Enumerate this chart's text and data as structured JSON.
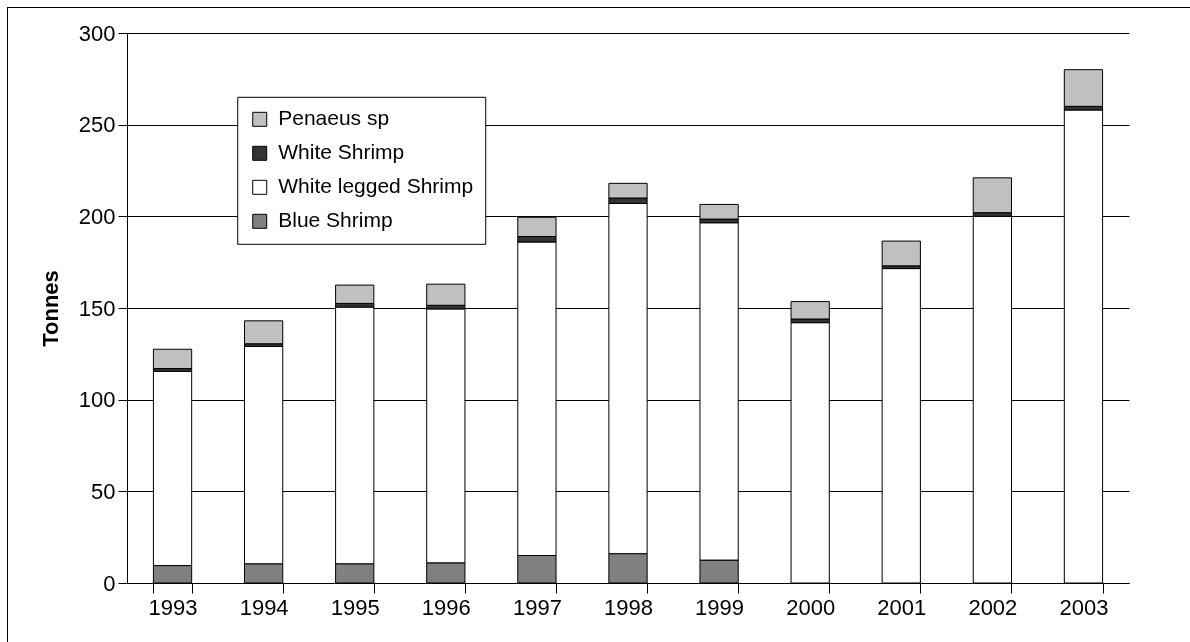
{
  "chart_data": {
    "type": "bar",
    "stacked": true,
    "ylabel": "Tonnes",
    "categories": [
      "1993",
      "1994",
      "1995",
      "1996",
      "1997",
      "1998",
      "1999",
      "2000",
      "2001",
      "2002",
      "2003"
    ],
    "series": [
      {
        "name": "Blue Shrimp",
        "color": "#808080",
        "values": [
          9.5,
          10.5,
          10.5,
          11,
          15,
          16,
          12.5,
          0,
          0,
          0,
          0
        ]
      },
      {
        "name": "White legged Shrimp",
        "color": "#ffffff",
        "values": [
          106,
          118.5,
          140,
          138.5,
          171,
          191,
          184,
          142,
          171.5,
          200,
          258
        ]
      },
      {
        "name": "White Shrimp",
        "color": "#333333",
        "values": [
          1.5,
          1.5,
          2,
          2,
          3,
          3,
          2,
          2,
          1.5,
          2,
          2
        ]
      },
      {
        "name": "Penaeus sp",
        "color": "#c0c0c0",
        "values": [
          10.5,
          12.5,
          10,
          11.5,
          10.5,
          8,
          8,
          9.5,
          13.5,
          19,
          20
        ]
      }
    ],
    "ylim": [
      0,
      300
    ],
    "yticks": [
      0,
      50,
      100,
      150,
      200,
      250,
      300
    ],
    "grid": "y",
    "legend": "top left"
  }
}
